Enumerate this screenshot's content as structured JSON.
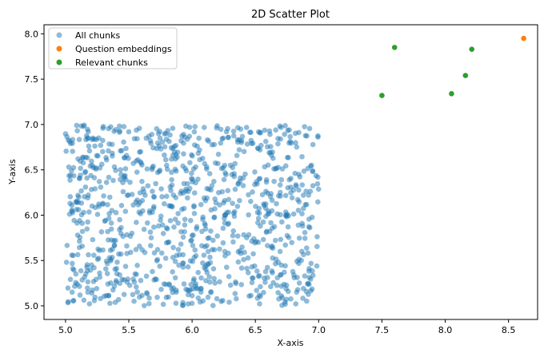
{
  "chart_data": {
    "type": "scatter",
    "title": "2D Scatter Plot",
    "xlabel": "X-axis",
    "ylabel": "Y-axis",
    "xlim": [
      4.83,
      8.73
    ],
    "ylim": [
      4.85,
      8.1
    ],
    "x_ticks": [
      "5.0",
      "5.5",
      "6.0",
      "6.5",
      "7.0",
      "7.5",
      "8.0",
      "8.5"
    ],
    "y_ticks": [
      "5.0",
      "5.5",
      "6.0",
      "6.5",
      "7.0",
      "7.5",
      "8.0"
    ],
    "grid": false,
    "legend_position": "top-left",
    "series": [
      {
        "name": "All chunks",
        "color": "#1f77b4",
        "alpha": 0.5,
        "count": 1000,
        "x_range": [
          5.0,
          7.0
        ],
        "y_range": [
          5.0,
          7.0
        ],
        "distribution": "uniform"
      },
      {
        "name": "Question embeddings",
        "color": "#ff7f0e",
        "points": [
          {
            "x": 8.62,
            "y": 7.95
          }
        ]
      },
      {
        "name": "Relevant chunks",
        "color": "#2ca02c",
        "points": [
          {
            "x": 7.6,
            "y": 7.85
          },
          {
            "x": 8.21,
            "y": 7.83
          },
          {
            "x": 8.16,
            "y": 7.54
          },
          {
            "x": 8.05,
            "y": 7.34
          },
          {
            "x": 7.5,
            "y": 7.32
          }
        ]
      }
    ]
  }
}
